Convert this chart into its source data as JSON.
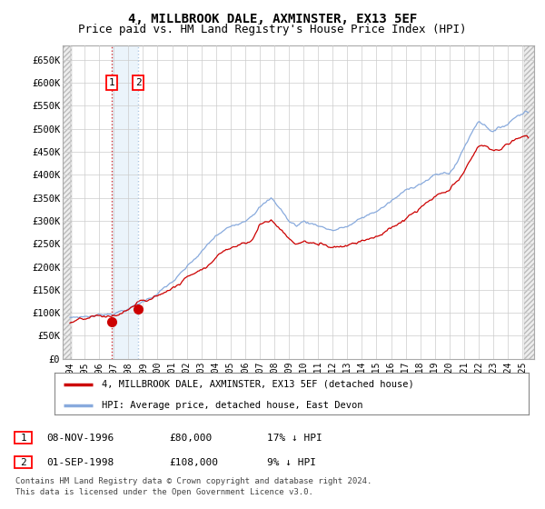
{
  "title": "4, MILLBROOK DALE, AXMINSTER, EX13 5EF",
  "subtitle": "Price paid vs. HM Land Registry's House Price Index (HPI)",
  "title_fontsize": 10,
  "subtitle_fontsize": 9,
  "xlim": [
    1993.5,
    2025.8
  ],
  "ylim": [
    0,
    680000
  ],
  "yticks": [
    0,
    50000,
    100000,
    150000,
    200000,
    250000,
    300000,
    350000,
    400000,
    450000,
    500000,
    550000,
    600000,
    650000
  ],
  "ytick_labels": [
    "£0",
    "£50K",
    "£100K",
    "£150K",
    "£200K",
    "£250K",
    "£300K",
    "£350K",
    "£400K",
    "£450K",
    "£500K",
    "£550K",
    "£600K",
    "£650K"
  ],
  "xtick_years": [
    1994,
    1995,
    1996,
    1997,
    1998,
    1999,
    2000,
    2001,
    2002,
    2003,
    2004,
    2005,
    2006,
    2007,
    2008,
    2009,
    2010,
    2011,
    2012,
    2013,
    2014,
    2015,
    2016,
    2017,
    2018,
    2019,
    2020,
    2021,
    2022,
    2023,
    2024,
    2025
  ],
  "sale1_x": 1996.86,
  "sale1_y": 80000,
  "sale2_x": 1998.67,
  "sale2_y": 108000,
  "legend_line1": "4, MILLBROOK DALE, AXMINSTER, EX13 5EF (detached house)",
  "legend_line2": "HPI: Average price, detached house, East Devon",
  "table_row1": [
    "1",
    "08-NOV-1996",
    "£80,000",
    "17% ↓ HPI"
  ],
  "table_row2": [
    "2",
    "01-SEP-1998",
    "£108,000",
    "9% ↓ HPI"
  ],
  "footer": "Contains HM Land Registry data © Crown copyright and database right 2024.\nThis data is licensed under the Open Government Licence v3.0.",
  "line_red_color": "#cc0000",
  "line_blue_color": "#88aadd",
  "grid_color": "#cccccc",
  "hatch_region_color": "#e8e8e8",
  "shade_color": "#d8eaf8"
}
